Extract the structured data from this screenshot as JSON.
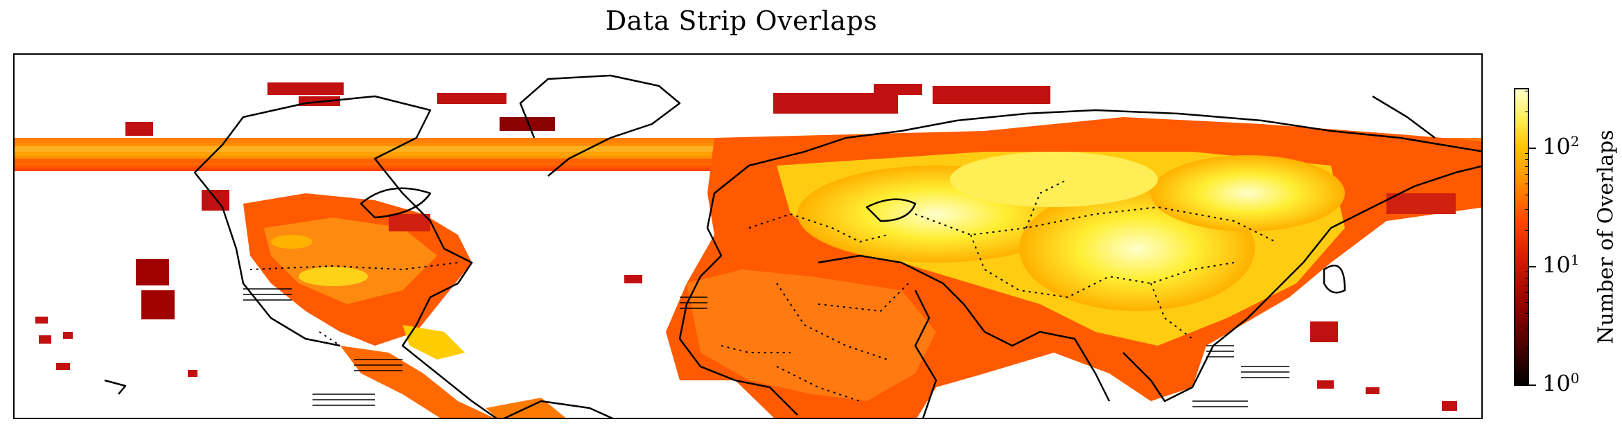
{
  "title": "Data Strip Overlaps",
  "colorbar": {
    "label": "Number of Overlaps",
    "scale": "log",
    "range": [
      1,
      300
    ],
    "ticks": [
      {
        "base": "10",
        "exp": "0",
        "value": 1
      },
      {
        "base": "10",
        "exp": "1",
        "value": 10
      },
      {
        "base": "10",
        "exp": "2",
        "value": 100
      }
    ],
    "colormap": "hot",
    "colors": {
      "low": "#000000",
      "mid": "#ff4500",
      "high": "#ffffcc"
    }
  },
  "map": {
    "projection": "equirectangular",
    "features": [
      "coastlines",
      "country-borders"
    ],
    "coverage_colors": {
      "sparse": "#b30000",
      "medium": "#ff6a00",
      "dense": "#ffff66"
    }
  }
}
